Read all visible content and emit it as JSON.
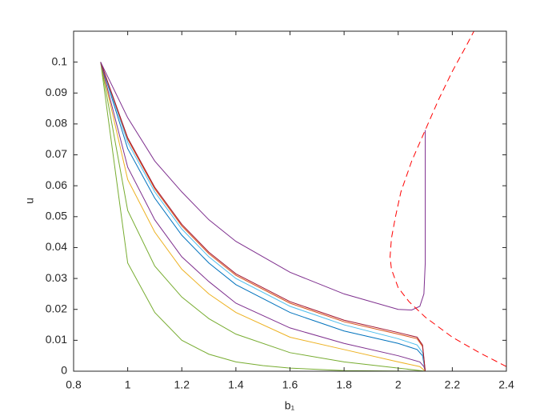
{
  "chart_data": {
    "type": "line",
    "xlabel": "b₁",
    "ylabel": "u",
    "xlim": [
      0.8,
      2.4
    ],
    "ylim": [
      0,
      0.11
    ],
    "xticks": [
      0.8,
      1,
      1.2,
      1.4,
      1.6,
      1.8,
      2,
      2.2,
      2.4
    ],
    "yticks": [
      0,
      0.01,
      0.02,
      0.03,
      0.04,
      0.05,
      0.06,
      0.07,
      0.08,
      0.09,
      0.1
    ],
    "series": [
      {
        "color": "#77AC30",
        "x": [
          0.9,
          1.0,
          1.1,
          1.2,
          1.3,
          1.4,
          1.5,
          1.6,
          1.8,
          2.1
        ],
        "values": [
          0.1,
          0.035,
          0.019,
          0.01,
          0.0055,
          0.003,
          0.0018,
          0.001,
          0.0002,
          0
        ]
      },
      {
        "color": "#77AC30",
        "x": [
          0.9,
          1.0,
          1.1,
          1.2,
          1.3,
          1.4,
          1.6,
          1.8,
          2.0,
          2.1
        ],
        "values": [
          0.1,
          0.052,
          0.034,
          0.024,
          0.017,
          0.012,
          0.006,
          0.003,
          0.001,
          0
        ]
      },
      {
        "color": "#EDB120",
        "x": [
          0.9,
          1.0,
          1.1,
          1.2,
          1.3,
          1.4,
          1.6,
          1.8,
          2.0,
          2.08,
          2.1
        ],
        "values": [
          0.1,
          0.062,
          0.045,
          0.033,
          0.025,
          0.019,
          0.011,
          0.007,
          0.003,
          0.0015,
          0
        ]
      },
      {
        "color": "#7E2F8E",
        "x": [
          0.9,
          1.0,
          1.1,
          1.2,
          1.3,
          1.4,
          1.6,
          1.8,
          2.0,
          2.08,
          2.095,
          2.1
        ],
        "values": [
          0.1,
          0.066,
          0.049,
          0.037,
          0.029,
          0.022,
          0.014,
          0.009,
          0.005,
          0.003,
          0.0015,
          0
        ]
      },
      {
        "color": "#0072BD",
        "x": [
          0.9,
          1.0,
          1.1,
          1.2,
          1.3,
          1.4,
          1.6,
          1.8,
          2.0,
          2.07,
          2.09,
          2.1
        ],
        "values": [
          0.1,
          0.072,
          0.056,
          0.044,
          0.035,
          0.028,
          0.019,
          0.013,
          0.009,
          0.007,
          0.005,
          0
        ]
      },
      {
        "color": "#4DBEEE",
        "x": [
          0.9,
          1.0,
          1.1,
          1.2,
          1.3,
          1.4,
          1.6,
          1.8,
          2.0,
          2.07,
          2.09,
          2.1
        ],
        "values": [
          0.1,
          0.074,
          0.058,
          0.046,
          0.037,
          0.03,
          0.021,
          0.015,
          0.0105,
          0.0085,
          0.006,
          0
        ]
      },
      {
        "color": "#D95319",
        "x": [
          0.9,
          1.0,
          1.1,
          1.2,
          1.3,
          1.4,
          1.6,
          1.8,
          2.0,
          2.07,
          2.09,
          2.1
        ],
        "values": [
          0.1,
          0.075,
          0.059,
          0.047,
          0.038,
          0.031,
          0.022,
          0.016,
          0.012,
          0.0105,
          0.008,
          0
        ]
      },
      {
        "color": "#A2142F",
        "x": [
          0.9,
          1.0,
          1.1,
          1.2,
          1.3,
          1.4,
          1.6,
          1.8,
          2.0,
          2.07,
          2.09,
          2.1
        ],
        "values": [
          0.1,
          0.0755,
          0.0595,
          0.0475,
          0.0385,
          0.0315,
          0.0225,
          0.0165,
          0.0125,
          0.011,
          0.0085,
          0
        ]
      },
      {
        "color": "#7E2F8E",
        "x": [
          0.9,
          1.0,
          1.1,
          1.2,
          1.3,
          1.4,
          1.6,
          1.8,
          2.0,
          2.05,
          2.08,
          2.095,
          2.1,
          2.1
        ],
        "values": [
          0.1,
          0.082,
          0.068,
          0.058,
          0.049,
          0.042,
          0.032,
          0.025,
          0.02,
          0.0198,
          0.021,
          0.025,
          0.035,
          0.078
        ]
      },
      {
        "color": "#FF0000",
        "linestyle": "dashed",
        "x": [
          2.4,
          2.3,
          2.2,
          2.1,
          2.04,
          2.0,
          1.975,
          1.97,
          1.975,
          1.99,
          2.01,
          2.05,
          2.1,
          2.15,
          2.2,
          2.25,
          2.28
        ],
        "values": [
          0.0015,
          0.006,
          0.011,
          0.0175,
          0.0225,
          0.027,
          0.033,
          0.037,
          0.043,
          0.05,
          0.058,
          0.068,
          0.078,
          0.088,
          0.097,
          0.105,
          0.11
        ]
      }
    ]
  }
}
